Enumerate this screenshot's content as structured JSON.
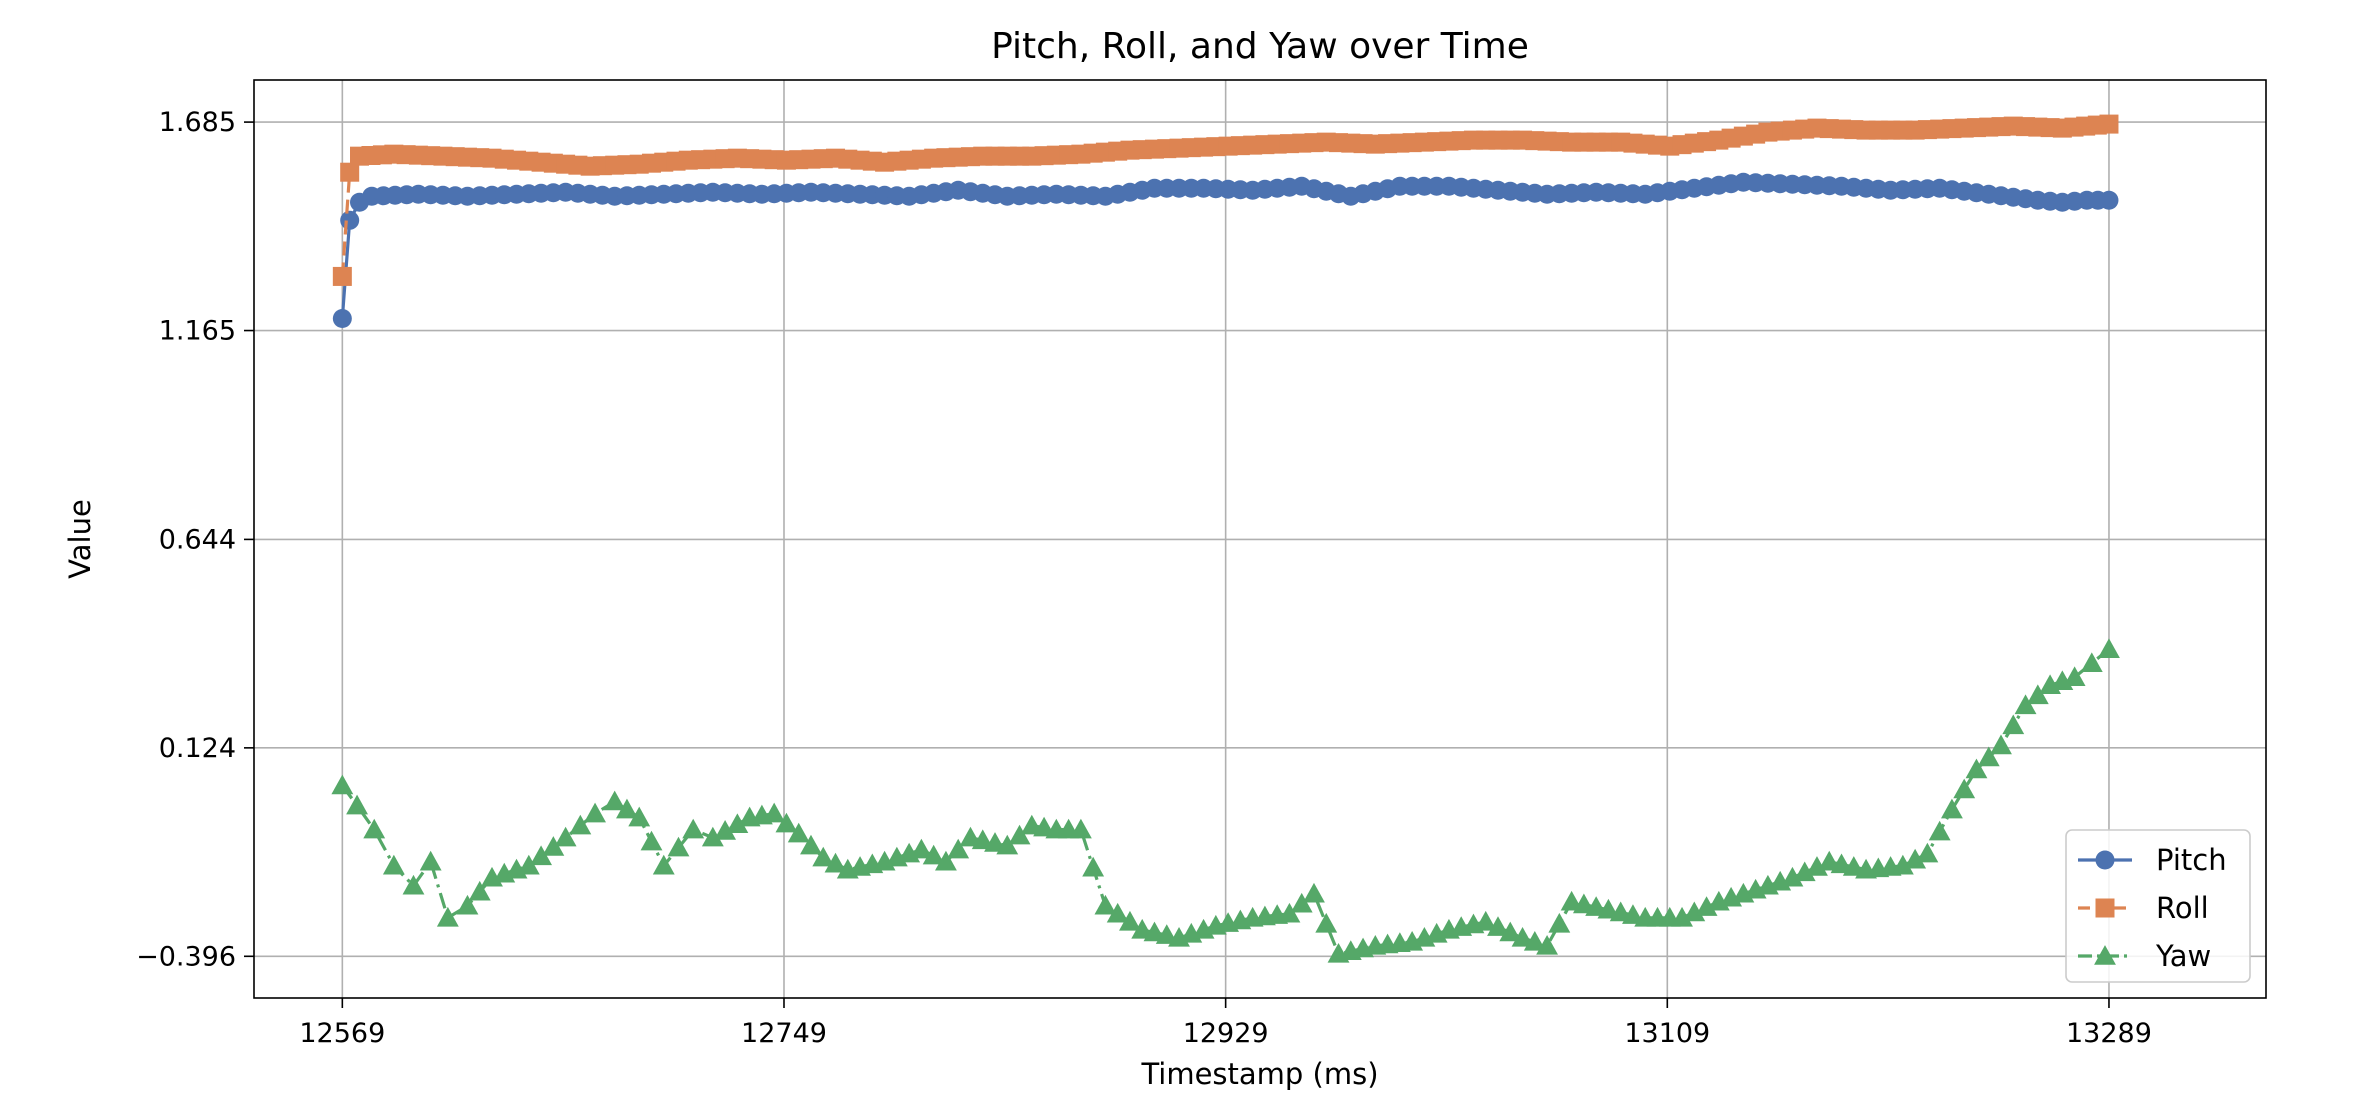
{
  "chart_data": {
    "type": "line",
    "title": "Pitch, Roll, and Yaw over Time",
    "xlabel": "Timestamp (ms)",
    "ylabel": "Value",
    "xlim": [
      12533,
      13353
    ],
    "ylim": [
      -0.5,
      1.79
    ],
    "x_ticks": [
      12569,
      12749,
      12929,
      13109,
      13289
    ],
    "x_tick_labels": [
      "12569",
      "12749",
      "12929",
      "13109",
      "13289"
    ],
    "y_ticks": [
      -0.396,
      0.124,
      0.644,
      1.165,
      1.685
    ],
    "y_tick_labels": [
      "−0.396",
      "0.124",
      "0.644",
      "1.165",
      "1.685"
    ],
    "grid": true,
    "legend_position": "lower-right",
    "series": [
      {
        "name": "Pitch",
        "color": "#4c72b0",
        "line_style": "solid",
        "marker": "circle",
        "points": [
          [
            12569,
            1.195
          ],
          [
            12572,
            1.44
          ],
          [
            12576,
            1.485
          ],
          [
            12581,
            1.5
          ],
          [
            12600,
            1.505
          ],
          [
            12620,
            1.5
          ],
          [
            12640,
            1.505
          ],
          [
            12660,
            1.51
          ],
          [
            12680,
            1.5
          ],
          [
            12700,
            1.505
          ],
          [
            12720,
            1.51
          ],
          [
            12740,
            1.505
          ],
          [
            12760,
            1.51
          ],
          [
            12780,
            1.505
          ],
          [
            12800,
            1.5
          ],
          [
            12820,
            1.515
          ],
          [
            12840,
            1.5
          ],
          [
            12860,
            1.505
          ],
          [
            12880,
            1.5
          ],
          [
            12900,
            1.52
          ],
          [
            12920,
            1.52
          ],
          [
            12940,
            1.515
          ],
          [
            12960,
            1.525
          ],
          [
            12980,
            1.5
          ],
          [
            13000,
            1.525
          ],
          [
            13020,
            1.525
          ],
          [
            13040,
            1.515
          ],
          [
            13060,
            1.505
          ],
          [
            13080,
            1.51
          ],
          [
            13100,
            1.505
          ],
          [
            13120,
            1.52
          ],
          [
            13140,
            1.535
          ],
          [
            13160,
            1.53
          ],
          [
            13180,
            1.525
          ],
          [
            13200,
            1.515
          ],
          [
            13220,
            1.52
          ],
          [
            13240,
            1.505
          ],
          [
            13260,
            1.49
          ],
          [
            13270,
            1.485
          ],
          [
            13280,
            1.49
          ],
          [
            13289,
            1.49
          ]
        ]
      },
      {
        "name": "Roll",
        "color": "#dd8452",
        "line_style": "dashed",
        "marker": "square",
        "points": [
          [
            12569,
            1.3
          ],
          [
            12572,
            1.56
          ],
          [
            12576,
            1.6
          ],
          [
            12590,
            1.605
          ],
          [
            12610,
            1.6
          ],
          [
            12630,
            1.595
          ],
          [
            12650,
            1.585
          ],
          [
            12670,
            1.575
          ],
          [
            12690,
            1.58
          ],
          [
            12710,
            1.59
          ],
          [
            12730,
            1.595
          ],
          [
            12750,
            1.59
          ],
          [
            12770,
            1.595
          ],
          [
            12790,
            1.585
          ],
          [
            12810,
            1.595
          ],
          [
            12830,
            1.6
          ],
          [
            12850,
            1.6
          ],
          [
            12870,
            1.605
          ],
          [
            12890,
            1.615
          ],
          [
            12910,
            1.62
          ],
          [
            12930,
            1.625
          ],
          [
            12950,
            1.63
          ],
          [
            12970,
            1.635
          ],
          [
            12990,
            1.63
          ],
          [
            13010,
            1.635
          ],
          [
            13030,
            1.64
          ],
          [
            13050,
            1.64
          ],
          [
            13070,
            1.635
          ],
          [
            13090,
            1.635
          ],
          [
            13110,
            1.625
          ],
          [
            13130,
            1.64
          ],
          [
            13150,
            1.66
          ],
          [
            13170,
            1.67
          ],
          [
            13190,
            1.665
          ],
          [
            13210,
            1.665
          ],
          [
            13230,
            1.67
          ],
          [
            13250,
            1.675
          ],
          [
            13270,
            1.67
          ],
          [
            13289,
            1.68
          ]
        ]
      },
      {
        "name": "Yaw",
        "color": "#55a868",
        "line_style": "dashdot",
        "marker": "triangle",
        "points": [
          [
            12569,
            0.03
          ],
          [
            12575,
            -0.02
          ],
          [
            12582,
            -0.08
          ],
          [
            12590,
            -0.17
          ],
          [
            12598,
            -0.22
          ],
          [
            12605,
            -0.16
          ],
          [
            12612,
            -0.3
          ],
          [
            12620,
            -0.27
          ],
          [
            12630,
            -0.2
          ],
          [
            12645,
            -0.17
          ],
          [
            12660,
            -0.1
          ],
          [
            12672,
            -0.04
          ],
          [
            12680,
            -0.01
          ],
          [
            12690,
            -0.05
          ],
          [
            12700,
            -0.17
          ],
          [
            12712,
            -0.08
          ],
          [
            12720,
            -0.1
          ],
          [
            12735,
            -0.05
          ],
          [
            12745,
            -0.04
          ],
          [
            12755,
            -0.09
          ],
          [
            12765,
            -0.15
          ],
          [
            12775,
            -0.18
          ],
          [
            12790,
            -0.16
          ],
          [
            12805,
            -0.13
          ],
          [
            12815,
            -0.16
          ],
          [
            12825,
            -0.1
          ],
          [
            12840,
            -0.12
          ],
          [
            12850,
            -0.07
          ],
          [
            12860,
            -0.08
          ],
          [
            12870,
            -0.08
          ],
          [
            12880,
            -0.27
          ],
          [
            12895,
            -0.33
          ],
          [
            12910,
            -0.35
          ],
          [
            12925,
            -0.32
          ],
          [
            12940,
            -0.3
          ],
          [
            12955,
            -0.29
          ],
          [
            12965,
            -0.24
          ],
          [
            12975,
            -0.39
          ],
          [
            12990,
            -0.37
          ],
          [
            13005,
            -0.36
          ],
          [
            13020,
            -0.33
          ],
          [
            13035,
            -0.31
          ],
          [
            13050,
            -0.35
          ],
          [
            13060,
            -0.37
          ],
          [
            13070,
            -0.26
          ],
          [
            13085,
            -0.28
          ],
          [
            13100,
            -0.3
          ],
          [
            13115,
            -0.3
          ],
          [
            13130,
            -0.26
          ],
          [
            13145,
            -0.23
          ],
          [
            13160,
            -0.2
          ],
          [
            13175,
            -0.16
          ],
          [
            13190,
            -0.18
          ],
          [
            13205,
            -0.17
          ],
          [
            13215,
            -0.14
          ],
          [
            13225,
            -0.03
          ],
          [
            13235,
            0.07
          ],
          [
            13245,
            0.13
          ],
          [
            13255,
            0.23
          ],
          [
            13265,
            0.28
          ],
          [
            13275,
            0.3
          ],
          [
            13289,
            0.37
          ]
        ]
      }
    ]
  }
}
